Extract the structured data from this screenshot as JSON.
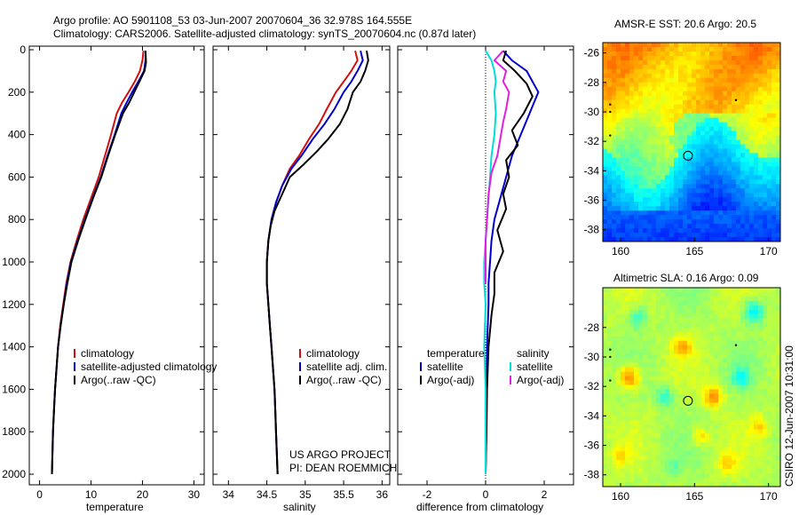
{
  "figure": {
    "title_line1": "Argo profile: AO 5901108_53 03-Jun-2007 20070604_36 32.978S 164.555E",
    "title_line2": "Climatology: CARS2006. Satellite-adjusted climatology: synTS_20070604.nc (0.87d later)",
    "credit_line1": "US ARGO PROJECT",
    "credit_line2": "PI: DEAN ROEMMICH",
    "side_stamp": "CSIRO 12-Jun-2007 10:31:00"
  },
  "colors": {
    "red": "#d01010",
    "blue": "#0000cc",
    "black": "#000000",
    "cyan": "#00dddd",
    "magenta": "#e020e0"
  },
  "chart_data": [
    {
      "id": "temperature",
      "type": "line",
      "xlabel": "temperature",
      "ylabel": "",
      "xlim": [
        -2,
        32
      ],
      "ylim": [
        2050,
        0
      ],
      "xticks": [
        0,
        10,
        20,
        30
      ],
      "yticks": [
        0,
        200,
        400,
        600,
        800,
        1000,
        1200,
        1400,
        1600,
        1800,
        2000
      ],
      "legend": [
        {
          "label": "climatology",
          "color": "red"
        },
        {
          "label": "satellite-adjusted climatology",
          "color": "blue"
        },
        {
          "label": "Argo(..raw -QC)",
          "color": "black"
        }
      ],
      "series": [
        {
          "name": "climatology",
          "color": "red",
          "points": [
            [
              20.2,
              5
            ],
            [
              20.0,
              50
            ],
            [
              19.5,
              100
            ],
            [
              18.5,
              150
            ],
            [
              17.3,
              200
            ],
            [
              16.0,
              250
            ],
            [
              15.0,
              300
            ],
            [
              13.9,
              400
            ],
            [
              12.7,
              500
            ],
            [
              11.5,
              600
            ],
            [
              10.0,
              700
            ],
            [
              8.5,
              800
            ],
            [
              7.2,
              900
            ],
            [
              6.0,
              1000
            ],
            [
              5.2,
              1100
            ],
            [
              4.6,
              1200
            ],
            [
              4.0,
              1300
            ],
            [
              3.6,
              1400
            ],
            [
              3.3,
              1500
            ],
            [
              3.0,
              1600
            ],
            [
              2.8,
              1700
            ],
            [
              2.6,
              1800
            ],
            [
              2.5,
              1900
            ],
            [
              2.4,
              2000
            ]
          ]
        },
        {
          "name": "satellite-adjusted climatology",
          "color": "blue",
          "points": [
            [
              20.6,
              5
            ],
            [
              20.6,
              50
            ],
            [
              20.3,
              100
            ],
            [
              19.2,
              150
            ],
            [
              18.0,
              200
            ],
            [
              16.9,
              250
            ],
            [
              15.9,
              300
            ],
            [
              14.6,
              400
            ],
            [
              13.2,
              500
            ],
            [
              11.9,
              600
            ],
            [
              10.3,
              700
            ],
            [
              8.8,
              800
            ],
            [
              7.4,
              900
            ],
            [
              6.1,
              1000
            ],
            [
              5.3,
              1100
            ],
            [
              4.7,
              1200
            ],
            [
              4.1,
              1300
            ],
            [
              3.6,
              1400
            ],
            [
              3.3,
              1500
            ],
            [
              3.0,
              1600
            ],
            [
              2.8,
              1700
            ],
            [
              2.6,
              1800
            ],
            [
              2.5,
              1900
            ],
            [
              2.4,
              2000
            ]
          ]
        },
        {
          "name": "Argo(..raw -QC)",
          "color": "black",
          "points": [
            [
              20.6,
              5
            ],
            [
              20.7,
              60
            ],
            [
              20.4,
              100
            ],
            [
              19.4,
              150
            ],
            [
              18.4,
              200
            ],
            [
              17.4,
              250
            ],
            [
              16.2,
              300
            ],
            [
              14.7,
              400
            ],
            [
              13.3,
              500
            ],
            [
              12.0,
              600
            ],
            [
              10.4,
              700
            ],
            [
              8.9,
              800
            ],
            [
              7.5,
              900
            ],
            [
              6.2,
              1000
            ],
            [
              5.4,
              1100
            ],
            [
              4.7,
              1200
            ],
            [
              4.1,
              1300
            ],
            [
              3.6,
              1400
            ],
            [
              3.3,
              1500
            ],
            [
              3.0,
              1600
            ],
            [
              2.8,
              1700
            ],
            [
              2.6,
              1800
            ],
            [
              2.5,
              1900
            ],
            [
              2.4,
              2000
            ]
          ]
        }
      ]
    },
    {
      "id": "salinity",
      "type": "line",
      "xlabel": "salinity",
      "ylabel": "",
      "xlim": [
        33.8,
        36.1
      ],
      "ylim": [
        2050,
        0
      ],
      "xticks": [
        34,
        34.5,
        35,
        35.5,
        36
      ],
      "xticklabels": [
        "34",
        "34.5",
        "35",
        "35.5",
        "36"
      ],
      "legend": [
        {
          "label": "climatology",
          "color": "red"
        },
        {
          "label": "satellite adj. clim.",
          "color": "blue"
        },
        {
          "label": "Argo(..raw -QC)",
          "color": "black"
        }
      ],
      "series": [
        {
          "name": "climatology",
          "color": "red",
          "points": [
            [
              35.65,
              5
            ],
            [
              35.68,
              50
            ],
            [
              35.6,
              100
            ],
            [
              35.5,
              150
            ],
            [
              35.4,
              200
            ],
            [
              35.28,
              280
            ],
            [
              35.18,
              350
            ],
            [
              35.05,
              420
            ],
            [
              34.92,
              500
            ],
            [
              34.8,
              560
            ],
            [
              34.7,
              640
            ],
            [
              34.62,
              720
            ],
            [
              34.56,
              800
            ],
            [
              34.52,
              900
            ],
            [
              34.5,
              1000
            ],
            [
              34.5,
              1100
            ],
            [
              34.52,
              1200
            ],
            [
              34.54,
              1300
            ],
            [
              34.56,
              1400
            ],
            [
              34.58,
              1500
            ],
            [
              34.6,
              1600
            ],
            [
              34.61,
              1700
            ],
            [
              34.62,
              1800
            ],
            [
              34.63,
              1900
            ],
            [
              34.64,
              2000
            ]
          ]
        },
        {
          "name": "satellite adj. clim.",
          "color": "blue",
          "points": [
            [
              35.72,
              5
            ],
            [
              35.75,
              50
            ],
            [
              35.68,
              100
            ],
            [
              35.6,
              150
            ],
            [
              35.5,
              200
            ],
            [
              35.38,
              280
            ],
            [
              35.25,
              350
            ],
            [
              35.1,
              420
            ],
            [
              34.95,
              500
            ],
            [
              34.82,
              560
            ],
            [
              34.7,
              640
            ],
            [
              34.62,
              720
            ],
            [
              34.56,
              800
            ],
            [
              34.52,
              900
            ],
            [
              34.5,
              1000
            ],
            [
              34.5,
              1100
            ],
            [
              34.52,
              1200
            ],
            [
              34.54,
              1300
            ],
            [
              34.56,
              1400
            ],
            [
              34.58,
              1500
            ],
            [
              34.6,
              1600
            ],
            [
              34.61,
              1700
            ],
            [
              34.62,
              1800
            ],
            [
              34.63,
              1900
            ],
            [
              34.64,
              2000
            ]
          ]
        },
        {
          "name": "Argo(..raw -QC)",
          "color": "black",
          "points": [
            [
              35.8,
              5
            ],
            [
              35.82,
              50
            ],
            [
              35.78,
              100
            ],
            [
              35.72,
              150
            ],
            [
              35.62,
              200
            ],
            [
              35.55,
              280
            ],
            [
              35.45,
              350
            ],
            [
              35.3,
              420
            ],
            [
              35.15,
              480
            ],
            [
              34.98,
              540
            ],
            [
              34.8,
              600
            ],
            [
              34.7,
              680
            ],
            [
              34.6,
              760
            ],
            [
              34.55,
              830
            ],
            [
              34.52,
              900
            ],
            [
              34.5,
              1000
            ],
            [
              34.5,
              1100
            ],
            [
              34.52,
              1200
            ],
            [
              34.54,
              1300
            ],
            [
              34.56,
              1400
            ],
            [
              34.58,
              1500
            ],
            [
              34.6,
              1600
            ],
            [
              34.61,
              1700
            ],
            [
              34.62,
              1800
            ],
            [
              34.63,
              1900
            ],
            [
              34.64,
              2000
            ]
          ]
        }
      ]
    },
    {
      "id": "difference",
      "type": "line",
      "xlabel": "difference from climatology",
      "ylabel": "",
      "xlim": [
        -3,
        3
      ],
      "ylim": [
        2050,
        0
      ],
      "xticks": [
        -2,
        0,
        2
      ],
      "legend_temperature_header": "temperature",
      "legend_salinity_header": "salinity",
      "legend": [
        {
          "label": "satellite",
          "color": "blue",
          "group": "temperature"
        },
        {
          "label": "Argo(-adj)",
          "color": "black",
          "group": "temperature"
        },
        {
          "label": "satellite",
          "color": "cyan",
          "group": "salinity"
        },
        {
          "label": "Argo(-adj)",
          "color": "magenta",
          "group": "salinity"
        }
      ],
      "series": [
        {
          "name": "temperature satellite",
          "color": "blue",
          "points": [
            [
              0.6,
              5
            ],
            [
              0.9,
              50
            ],
            [
              1.4,
              100
            ],
            [
              1.6,
              150
            ],
            [
              1.8,
              200
            ],
            [
              1.5,
              300
            ],
            [
              1.2,
              400
            ],
            [
              0.9,
              500
            ],
            [
              0.7,
              600
            ],
            [
              0.5,
              700
            ],
            [
              0.3,
              800
            ],
            [
              0.2,
              900
            ],
            [
              0.15,
              1000
            ],
            [
              0.1,
              1100
            ],
            [
              0.1,
              1200
            ],
            [
              0.05,
              1400
            ],
            [
              0.03,
              1600
            ],
            [
              0.02,
              1800
            ],
            [
              0.0,
              2000
            ]
          ]
        },
        {
          "name": "temperature Argo(-adj)",
          "color": "black",
          "points": [
            [
              0.7,
              5
            ],
            [
              0.6,
              50
            ],
            [
              1.0,
              100
            ],
            [
              1.4,
              160
            ],
            [
              1.6,
              220
            ],
            [
              1.3,
              300
            ],
            [
              0.9,
              380
            ],
            [
              1.1,
              450
            ],
            [
              0.7,
              520
            ],
            [
              0.8,
              600
            ],
            [
              0.6,
              680
            ],
            [
              0.7,
              750
            ],
            [
              0.4,
              850
            ],
            [
              0.6,
              950
            ],
            [
              0.3,
              1050
            ],
            [
              0.3,
              1150
            ],
            [
              0.2,
              1250
            ],
            [
              0.1,
              1400
            ],
            [
              0.05,
              1600
            ],
            [
              0.03,
              1800
            ],
            [
              0.0,
              2000
            ]
          ]
        },
        {
          "name": "salinity satellite",
          "color": "cyan",
          "points": [
            [
              0.0,
              5
            ],
            [
              0.2,
              50
            ],
            [
              0.3,
              100
            ],
            [
              0.35,
              150
            ],
            [
              0.3,
              200
            ],
            [
              0.35,
              300
            ],
            [
              0.3,
              400
            ],
            [
              0.2,
              500
            ],
            [
              0.15,
              600
            ],
            [
              0.1,
              700
            ],
            [
              0.05,
              800
            ],
            [
              0.0,
              900
            ],
            [
              -0.05,
              1000
            ],
            [
              -0.05,
              1100
            ],
            [
              0.0,
              1200
            ],
            [
              -0.05,
              1400
            ],
            [
              0.0,
              1600
            ],
            [
              0.0,
              1800
            ],
            [
              0.0,
              2000
            ]
          ]
        },
        {
          "name": "salinity Argo(-adj)",
          "color": "magenta",
          "points": [
            [
              0.6,
              5
            ],
            [
              0.3,
              50
            ],
            [
              0.7,
              100
            ],
            [
              0.6,
              150
            ],
            [
              0.8,
              200
            ],
            [
              0.7,
              280
            ],
            [
              0.6,
              340
            ],
            [
              0.5,
              420
            ],
            [
              0.4,
              500
            ],
            [
              0.2,
              580
            ],
            [
              0.1,
              680
            ],
            [
              0.05,
              800
            ],
            [
              0.0,
              900
            ],
            [
              0.0,
              1000
            ],
            [
              0.0,
              1100
            ]
          ]
        }
      ]
    },
    {
      "id": "sst_map",
      "type": "heatmap",
      "title": "AMSR-E SST: 20.6 Argo: 20.5",
      "xlim": [
        158.8,
        170.8
      ],
      "ylim": [
        -38.8,
        -25.3
      ],
      "xticks": [
        160,
        165,
        170
      ],
      "yticks": [
        -26,
        -28,
        -30,
        -32,
        -34,
        -36,
        -38
      ],
      "float_position": [
        164.555,
        -32.978
      ]
    },
    {
      "id": "sla_map",
      "type": "heatmap",
      "title": "Altimetric SLA: 0.16 Argo: 0.09",
      "xlim": [
        158.8,
        170.8
      ],
      "ylim": [
        -38.8,
        -25.3
      ],
      "xticks": [
        160,
        165,
        170
      ],
      "yticks": [
        -28,
        -30,
        -32,
        -34,
        -36,
        -38
      ],
      "float_position": [
        164.555,
        -32.978
      ]
    }
  ]
}
